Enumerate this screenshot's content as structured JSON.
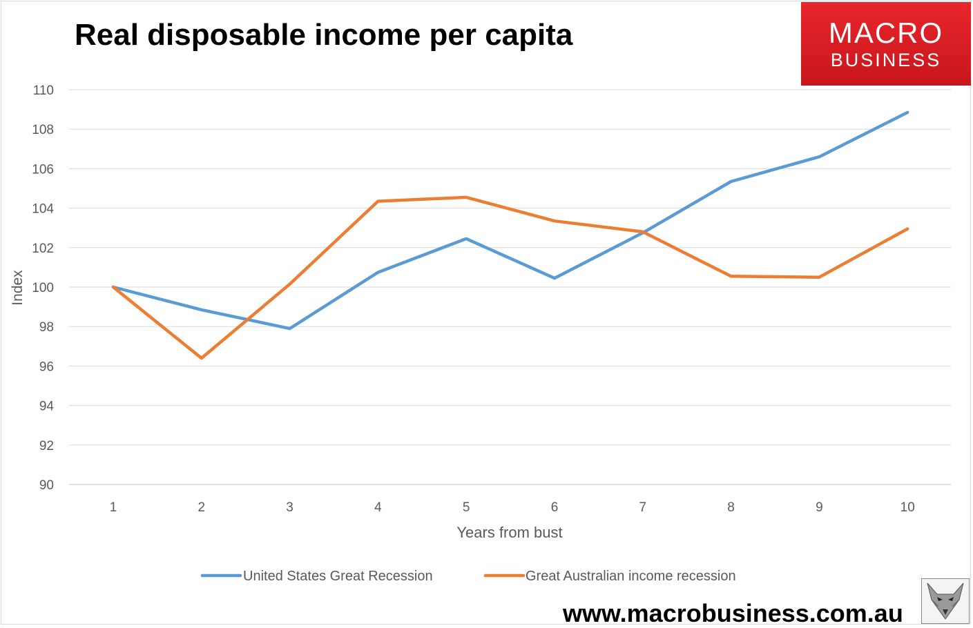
{
  "header": {
    "title": "Real disposable income per capita"
  },
  "logo": {
    "line1": "MACRO",
    "line2": "BUSINESS",
    "color": "#d71e24"
  },
  "footer": {
    "url": "www.macrobusiness.com.au",
    "icon": "fox-icon"
  },
  "chart_data": {
    "type": "line",
    "title": "Real disposable income per capita",
    "xlabel": "Years from bust",
    "ylabel": "Index",
    "x": [
      1,
      2,
      3,
      4,
      5,
      6,
      7,
      8,
      9,
      10
    ],
    "ylim": [
      90,
      110
    ],
    "yticks": [
      90,
      92,
      94,
      96,
      98,
      100,
      102,
      104,
      106,
      108,
      110
    ],
    "grid": true,
    "legend_position": "bottom",
    "series": [
      {
        "name": "United States Great Recession",
        "color": "#5b9bd5",
        "values": [
          100,
          98.85,
          97.9,
          100.75,
          102.45,
          100.45,
          102.75,
          105.35,
          106.6,
          108.85
        ]
      },
      {
        "name": "Great Australian income recession",
        "color": "#ed7d31",
        "values": [
          100,
          96.4,
          100.15,
          104.35,
          104.55,
          103.35,
          102.8,
          100.55,
          100.5,
          102.95
        ]
      }
    ]
  }
}
